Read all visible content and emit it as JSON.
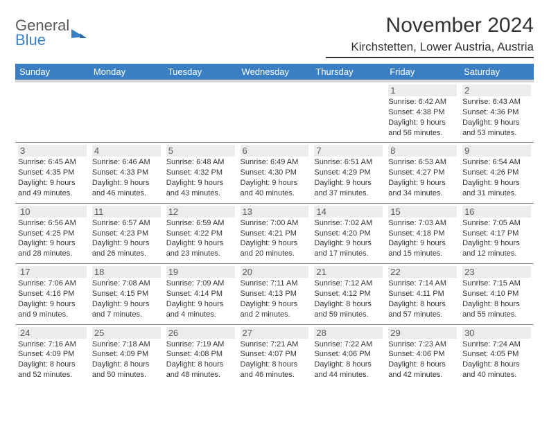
{
  "logo": {
    "line1": "General",
    "line2": "Blue"
  },
  "title": "November 2024",
  "location": "Kirchstetten, Lower Austria, Austria",
  "colors": {
    "header_bg": "#3a7fc4",
    "header_text": "#ffffff",
    "daynum_bg": "#ececec",
    "border": "#8a8a8a",
    "text": "#333333",
    "subheader_strip": "#d6d6d6"
  },
  "fonts": {
    "title_size": 30,
    "location_size": 17,
    "dayhdr_size": 13,
    "cell_size": 11
  },
  "day_headers": [
    "Sunday",
    "Monday",
    "Tuesday",
    "Wednesday",
    "Thursday",
    "Friday",
    "Saturday"
  ],
  "weeks": [
    [
      null,
      null,
      null,
      null,
      null,
      {
        "n": "1",
        "sr": "Sunrise: 6:42 AM",
        "ss": "Sunset: 4:38 PM",
        "dl1": "Daylight: 9 hours",
        "dl2": "and 56 minutes."
      },
      {
        "n": "2",
        "sr": "Sunrise: 6:43 AM",
        "ss": "Sunset: 4:36 PM",
        "dl1": "Daylight: 9 hours",
        "dl2": "and 53 minutes."
      }
    ],
    [
      {
        "n": "3",
        "sr": "Sunrise: 6:45 AM",
        "ss": "Sunset: 4:35 PM",
        "dl1": "Daylight: 9 hours",
        "dl2": "and 49 minutes."
      },
      {
        "n": "4",
        "sr": "Sunrise: 6:46 AM",
        "ss": "Sunset: 4:33 PM",
        "dl1": "Daylight: 9 hours",
        "dl2": "and 46 minutes."
      },
      {
        "n": "5",
        "sr": "Sunrise: 6:48 AM",
        "ss": "Sunset: 4:32 PM",
        "dl1": "Daylight: 9 hours",
        "dl2": "and 43 minutes."
      },
      {
        "n": "6",
        "sr": "Sunrise: 6:49 AM",
        "ss": "Sunset: 4:30 PM",
        "dl1": "Daylight: 9 hours",
        "dl2": "and 40 minutes."
      },
      {
        "n": "7",
        "sr": "Sunrise: 6:51 AM",
        "ss": "Sunset: 4:29 PM",
        "dl1": "Daylight: 9 hours",
        "dl2": "and 37 minutes."
      },
      {
        "n": "8",
        "sr": "Sunrise: 6:53 AM",
        "ss": "Sunset: 4:27 PM",
        "dl1": "Daylight: 9 hours",
        "dl2": "and 34 minutes."
      },
      {
        "n": "9",
        "sr": "Sunrise: 6:54 AM",
        "ss": "Sunset: 4:26 PM",
        "dl1": "Daylight: 9 hours",
        "dl2": "and 31 minutes."
      }
    ],
    [
      {
        "n": "10",
        "sr": "Sunrise: 6:56 AM",
        "ss": "Sunset: 4:25 PM",
        "dl1": "Daylight: 9 hours",
        "dl2": "and 28 minutes."
      },
      {
        "n": "11",
        "sr": "Sunrise: 6:57 AM",
        "ss": "Sunset: 4:23 PM",
        "dl1": "Daylight: 9 hours",
        "dl2": "and 26 minutes."
      },
      {
        "n": "12",
        "sr": "Sunrise: 6:59 AM",
        "ss": "Sunset: 4:22 PM",
        "dl1": "Daylight: 9 hours",
        "dl2": "and 23 minutes."
      },
      {
        "n": "13",
        "sr": "Sunrise: 7:00 AM",
        "ss": "Sunset: 4:21 PM",
        "dl1": "Daylight: 9 hours",
        "dl2": "and 20 minutes."
      },
      {
        "n": "14",
        "sr": "Sunrise: 7:02 AM",
        "ss": "Sunset: 4:20 PM",
        "dl1": "Daylight: 9 hours",
        "dl2": "and 17 minutes."
      },
      {
        "n": "15",
        "sr": "Sunrise: 7:03 AM",
        "ss": "Sunset: 4:18 PM",
        "dl1": "Daylight: 9 hours",
        "dl2": "and 15 minutes."
      },
      {
        "n": "16",
        "sr": "Sunrise: 7:05 AM",
        "ss": "Sunset: 4:17 PM",
        "dl1": "Daylight: 9 hours",
        "dl2": "and 12 minutes."
      }
    ],
    [
      {
        "n": "17",
        "sr": "Sunrise: 7:06 AM",
        "ss": "Sunset: 4:16 PM",
        "dl1": "Daylight: 9 hours",
        "dl2": "and 9 minutes."
      },
      {
        "n": "18",
        "sr": "Sunrise: 7:08 AM",
        "ss": "Sunset: 4:15 PM",
        "dl1": "Daylight: 9 hours",
        "dl2": "and 7 minutes."
      },
      {
        "n": "19",
        "sr": "Sunrise: 7:09 AM",
        "ss": "Sunset: 4:14 PM",
        "dl1": "Daylight: 9 hours",
        "dl2": "and 4 minutes."
      },
      {
        "n": "20",
        "sr": "Sunrise: 7:11 AM",
        "ss": "Sunset: 4:13 PM",
        "dl1": "Daylight: 9 hours",
        "dl2": "and 2 minutes."
      },
      {
        "n": "21",
        "sr": "Sunrise: 7:12 AM",
        "ss": "Sunset: 4:12 PM",
        "dl1": "Daylight: 8 hours",
        "dl2": "and 59 minutes."
      },
      {
        "n": "22",
        "sr": "Sunrise: 7:14 AM",
        "ss": "Sunset: 4:11 PM",
        "dl1": "Daylight: 8 hours",
        "dl2": "and 57 minutes."
      },
      {
        "n": "23",
        "sr": "Sunrise: 7:15 AM",
        "ss": "Sunset: 4:10 PM",
        "dl1": "Daylight: 8 hours",
        "dl2": "and 55 minutes."
      }
    ],
    [
      {
        "n": "24",
        "sr": "Sunrise: 7:16 AM",
        "ss": "Sunset: 4:09 PM",
        "dl1": "Daylight: 8 hours",
        "dl2": "and 52 minutes."
      },
      {
        "n": "25",
        "sr": "Sunrise: 7:18 AM",
        "ss": "Sunset: 4:09 PM",
        "dl1": "Daylight: 8 hours",
        "dl2": "and 50 minutes."
      },
      {
        "n": "26",
        "sr": "Sunrise: 7:19 AM",
        "ss": "Sunset: 4:08 PM",
        "dl1": "Daylight: 8 hours",
        "dl2": "and 48 minutes."
      },
      {
        "n": "27",
        "sr": "Sunrise: 7:21 AM",
        "ss": "Sunset: 4:07 PM",
        "dl1": "Daylight: 8 hours",
        "dl2": "and 46 minutes."
      },
      {
        "n": "28",
        "sr": "Sunrise: 7:22 AM",
        "ss": "Sunset: 4:06 PM",
        "dl1": "Daylight: 8 hours",
        "dl2": "and 44 minutes."
      },
      {
        "n": "29",
        "sr": "Sunrise: 7:23 AM",
        "ss": "Sunset: 4:06 PM",
        "dl1": "Daylight: 8 hours",
        "dl2": "and 42 minutes."
      },
      {
        "n": "30",
        "sr": "Sunrise: 7:24 AM",
        "ss": "Sunset: 4:05 PM",
        "dl1": "Daylight: 8 hours",
        "dl2": "and 40 minutes."
      }
    ]
  ]
}
